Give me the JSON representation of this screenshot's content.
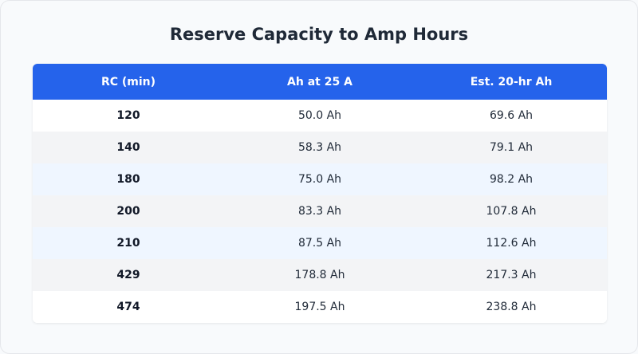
{
  "title": "Reserve Capacity to Amp Hours",
  "colors": {
    "header_bg": "#2563eb",
    "header_text": "#ffffff",
    "row_alt_gray": "#f3f4f6",
    "row_alt_blue": "#eff6ff"
  },
  "table": {
    "headers": [
      "RC (min)",
      "Ah at 25 A",
      "Est. 20-hr Ah"
    ],
    "rows": [
      [
        "120",
        "50.0 Ah",
        "69.6 Ah"
      ],
      [
        "140",
        "58.3 Ah",
        "79.1 Ah"
      ],
      [
        "180",
        "75.0 Ah",
        "98.2 Ah"
      ],
      [
        "200",
        "83.3 Ah",
        "107.8 Ah"
      ],
      [
        "210",
        "87.5 Ah",
        "112.6 Ah"
      ],
      [
        "429",
        "178.8 Ah",
        "217.3 Ah"
      ],
      [
        "474",
        "197.5 Ah",
        "238.8 Ah"
      ]
    ]
  }
}
